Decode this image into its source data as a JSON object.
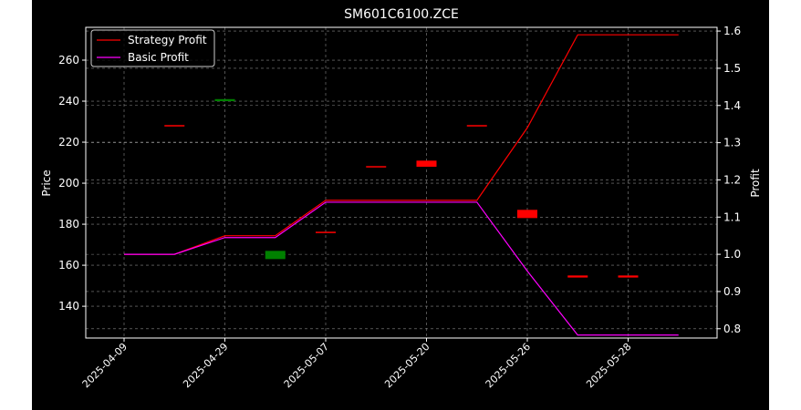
{
  "chart_data": {
    "type": "line",
    "title": "SM601C6100.ZCE",
    "xlabel": "",
    "ylabel_left": "Price",
    "ylabel_right": "Profit",
    "x_tick_labels": [
      "2025-04-09",
      "2025-04-29",
      "2025-05-07",
      "2025-05-20",
      "2025-05-26",
      "2025-05-28"
    ],
    "y_left": {
      "lim": [
        124.5,
        276
      ],
      "ticks": [
        140,
        160,
        180,
        200,
        220,
        240,
        260
      ]
    },
    "y_right": {
      "lim": [
        0.775,
        1.61
      ],
      "ticks": [
        0.8,
        0.9,
        1.0,
        1.1,
        1.2,
        1.3,
        1.4,
        1.5,
        1.6
      ]
    },
    "grid": true,
    "legend_position": "upper-left",
    "series": [
      {
        "name": "Strategy Profit",
        "color": "#ff0000",
        "axis": "right",
        "x": [
          0,
          1,
          2,
          3,
          4,
          5,
          6,
          7,
          8,
          9,
          10,
          11
        ],
        "values": [
          1.0,
          1.0,
          1.05,
          1.05,
          1.145,
          1.145,
          1.145,
          1.145,
          1.34,
          1.59,
          1.59,
          1.59
        ]
      },
      {
        "name": "Basic Profit",
        "color": "#ff00ff",
        "axis": "right",
        "x": [
          0,
          1,
          2,
          3,
          4,
          5,
          6,
          7,
          8,
          9,
          10,
          11
        ],
        "values": [
          1.0,
          1.0,
          1.045,
          1.045,
          1.14,
          1.14,
          1.14,
          1.14,
          0.955,
          0.783,
          0.783,
          0.783
        ]
      }
    ],
    "candles": [
      {
        "x": 1,
        "open": 228,
        "close": 228,
        "color": "#ff0000"
      },
      {
        "x": 2,
        "open": 240,
        "close": 241,
        "color": "#008000"
      },
      {
        "x": 3,
        "open": 163,
        "close": 167,
        "color": "#008000"
      },
      {
        "x": 4,
        "open": 176,
        "close": 176,
        "color": "#ff0000"
      },
      {
        "x": 5,
        "open": 208,
        "close": 208,
        "color": "#ff0000"
      },
      {
        "x": 6,
        "open": 211,
        "close": 208,
        "color": "#ff0000"
      },
      {
        "x": 7,
        "open": 228,
        "close": 228,
        "color": "#ff0000"
      },
      {
        "x": 8,
        "open": 187,
        "close": 183,
        "color": "#ff0000"
      },
      {
        "x": 9,
        "open": 155,
        "close": 154,
        "color": "#ff0000"
      },
      {
        "x": 10,
        "open": 155,
        "close": 154,
        "color": "#ff0000"
      }
    ]
  }
}
